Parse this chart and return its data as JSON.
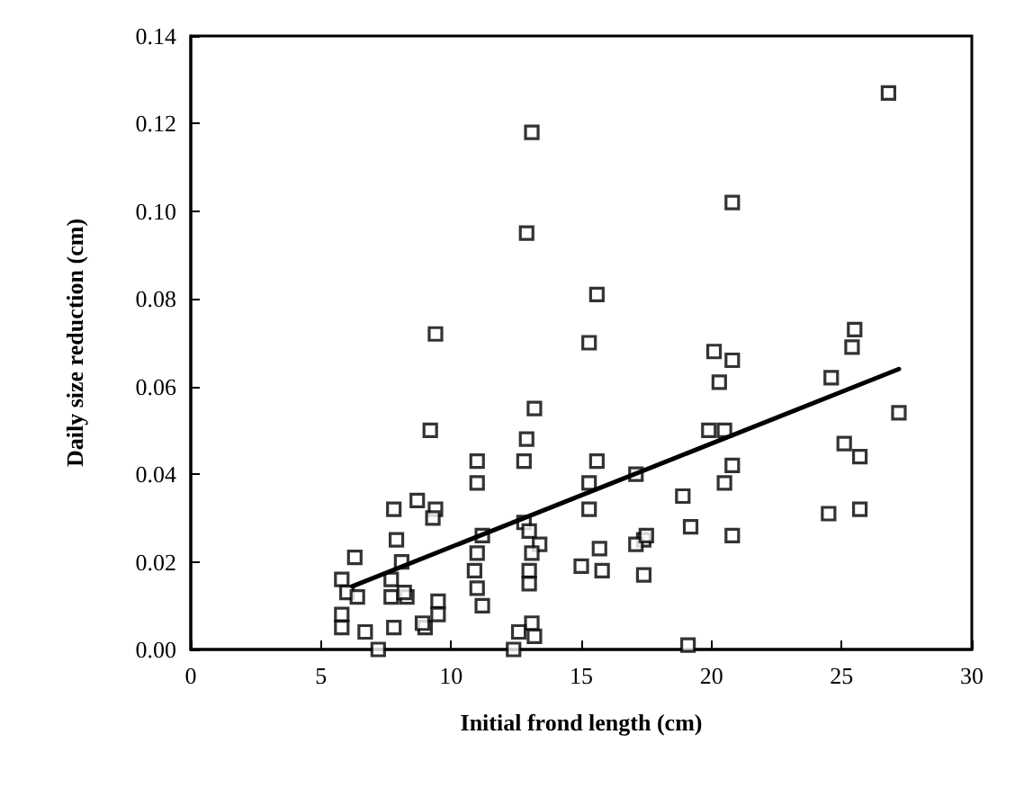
{
  "chart_data": {
    "type": "scatter",
    "xlabel": "Initial frond length (cm)",
    "ylabel": "Daily size reduction (cm)",
    "xlim": [
      0,
      30
    ],
    "xticks": [
      0,
      5,
      10,
      15,
      20,
      25,
      30
    ],
    "ylim": [
      0,
      0.14
    ],
    "yticks": [
      {
        "value": 0,
        "label": "0.00"
      },
      {
        "value": 0.02,
        "label": "0.02"
      },
      {
        "value": 0.04,
        "label": "0.04"
      },
      {
        "value": 0.06,
        "label": "0.06"
      },
      {
        "value": 0.08,
        "label": "0.08"
      },
      {
        "value": 0.1,
        "label": "0.10"
      },
      {
        "value": 0.12,
        "label": "0.12"
      },
      {
        "value": 0.14,
        "label": "0.14"
      }
    ],
    "grid": false,
    "marker": "square",
    "series": [
      {
        "color": "#000000",
        "x": [
          13.1,
          12.9,
          20.8,
          26.8,
          9.4,
          15.6,
          15.3,
          20.1,
          20.8,
          20.3,
          25.5,
          25.4,
          24.6,
          27.2,
          13.2,
          9.2,
          12.9,
          19.9,
          20.5,
          25.1,
          17.1,
          25.7,
          20.8,
          20.5,
          18.9,
          24.5,
          25.7,
          19.2,
          20.8,
          17.4,
          17.1,
          17.4,
          19.1,
          11.0,
          11.0,
          12.8,
          15.6,
          15.3,
          15.3,
          15.7,
          15.0,
          15.8,
          17.5,
          12.8,
          13.0,
          13.4,
          13.1,
          13.0,
          13.0,
          13.1,
          12.6,
          13.2,
          12.4,
          11.2,
          11.0,
          10.9,
          11.0,
          11.2,
          8.7,
          9.4,
          9.3,
          7.8,
          7.9,
          9.5,
          9.0,
          7.8,
          8.1,
          8.3,
          6.3,
          5.8,
          6.0,
          6.4,
          7.7,
          7.7,
          8.2,
          5.8,
          5.8,
          6.7,
          7.2,
          8.9,
          9.5
        ],
        "values": [
          0.118,
          0.095,
          0.102,
          0.127,
          0.072,
          0.081,
          0.07,
          0.068,
          0.066,
          0.061,
          0.073,
          0.069,
          0.062,
          0.054,
          0.055,
          0.05,
          0.048,
          0.05,
          0.05,
          0.047,
          0.04,
          0.044,
          0.042,
          0.038,
          0.035,
          0.031,
          0.032,
          0.028,
          0.026,
          0.025,
          0.024,
          0.017,
          0.001,
          0.043,
          0.038,
          0.043,
          0.043,
          0.038,
          0.032,
          0.023,
          0.019,
          0.018,
          0.026,
          0.029,
          0.027,
          0.024,
          0.022,
          0.018,
          0.015,
          0.006,
          0.004,
          0.003,
          0.0,
          0.026,
          0.022,
          0.018,
          0.014,
          0.01,
          0.034,
          0.032,
          0.03,
          0.032,
          0.025,
          0.011,
          0.005,
          0.005,
          0.02,
          0.012,
          0.021,
          0.016,
          0.013,
          0.012,
          0.016,
          0.012,
          0.013,
          0.008,
          0.005,
          0.004,
          0.0,
          0.006,
          0.008
        ]
      },
      {
        "type": "line",
        "color": "#000000",
        "marker": "none",
        "line_style": "solid",
        "x": [
          6.2,
          27.2
        ],
        "values": [
          0.0144,
          0.064
        ]
      }
    ]
  }
}
